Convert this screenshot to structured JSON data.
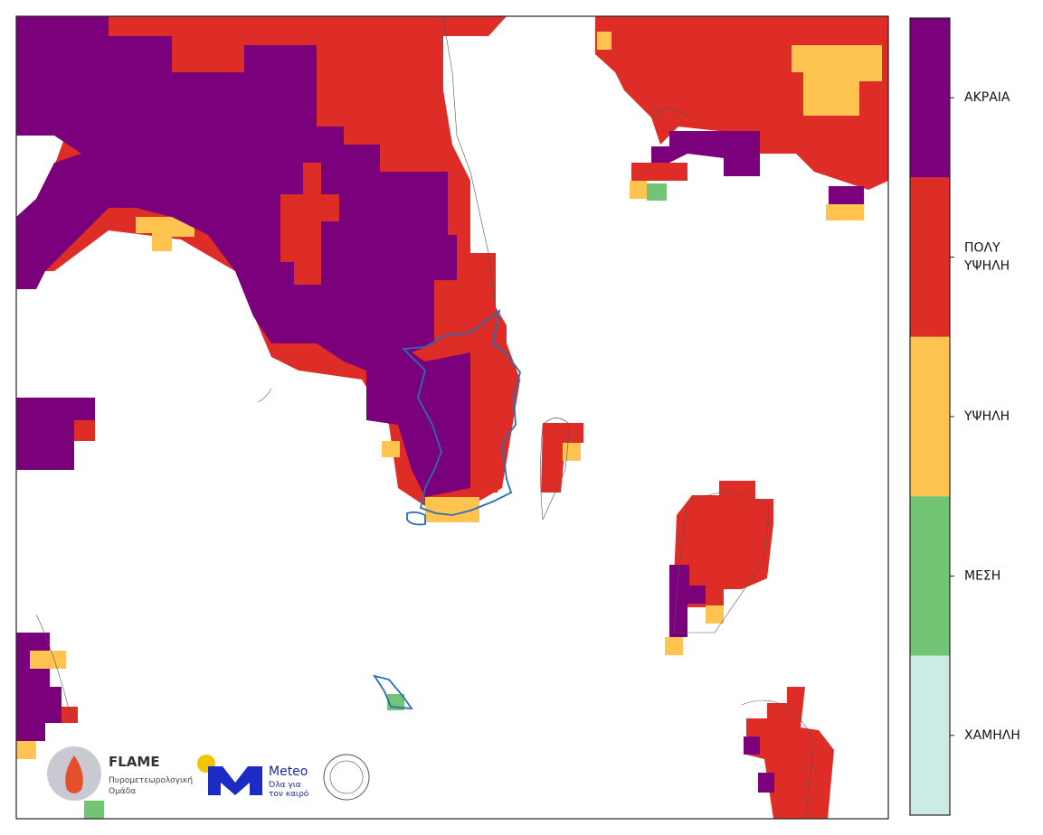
{
  "legend": {
    "levels": [
      {
        "label_lines": [
          "ΑΚΡΑΙΑ"
        ],
        "color": "#7b007b"
      },
      {
        "label_lines": [
          "ΠΟΛΥ",
          "ΥΨΗΛΗ"
        ],
        "color": "#de2d26"
      },
      {
        "label_lines": [
          "ΥΨΗΛΗ"
        ],
        "color": "#fec44f"
      },
      {
        "label_lines": [
          "ΜΕΣΗ"
        ],
        "color": "#74c476"
      },
      {
        "label_lines": [
          "ΧΑΜΗΛΗ"
        ],
        "color": "#ccebe5"
      }
    ]
  },
  "logos": {
    "flame_title": "FLAME",
    "flame_subtitle_1": "Πυρομετεωρολογική",
    "flame_subtitle_2": "Ομάδα",
    "meteo_title": "Meteo",
    "meteo_subtitle_1": "Όλα για",
    "meteo_subtitle_2": "τον καιρό"
  }
}
